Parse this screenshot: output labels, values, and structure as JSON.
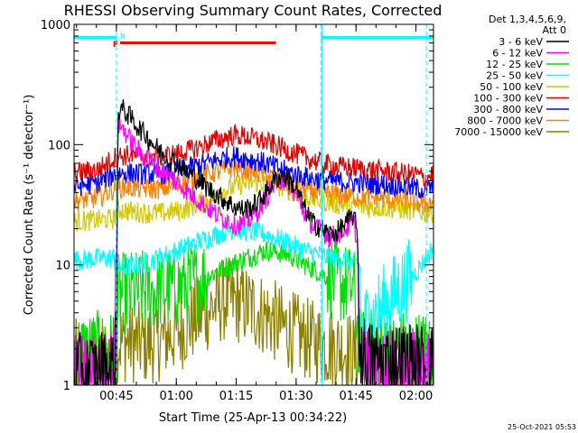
{
  "chart_data": {
    "type": "line",
    "title": "RHESSI Observing Summary Count Rates, Corrected",
    "xlabel": "Start Time (25-Apr-13 00:34:22)",
    "ylabel": "Corrected Count Rate (s⁻¹ detector⁻¹)",
    "y_scale": "log",
    "ylim": [
      1,
      1000
    ],
    "xlim_minutes_after_0034": [
      0,
      90
    ],
    "x_ticks": [
      {
        "label": "00:45",
        "t": 10.6
      },
      {
        "label": "01:00",
        "t": 25.6
      },
      {
        "label": "01:15",
        "t": 40.6
      },
      {
        "label": "01:30",
        "t": 55.6
      },
      {
        "label": "01:45",
        "t": 70.6
      },
      {
        "label": "02:00",
        "t": 85.6
      }
    ],
    "y_ticks": [
      {
        "label": "1",
        "v": 1
      },
      {
        "label": "10",
        "v": 10
      },
      {
        "label": "100",
        "v": 100
      },
      {
        "label": "1000",
        "v": 1000
      }
    ],
    "legend": {
      "position": "right",
      "header": [
        "Det 1,3,4,5,6,9,",
        "Att 0"
      ],
      "entries": [
        {
          "label": "3 - 6 keV",
          "color": "#000000"
        },
        {
          "label": "6 - 12 keV",
          "color": "#ff00ff"
        },
        {
          "label": "12 - 25 keV",
          "color": "#00e000"
        },
        {
          "label": "25 - 50 keV",
          "color": "#00ffff"
        },
        {
          "label": "50 - 100 keV",
          "color": "#d4c800"
        },
        {
          "label": "100 - 300 keV",
          "color": "#e00000"
        },
        {
          "label": "300 - 800 keV",
          "color": "#0000ff"
        },
        {
          "label": "800 - 7000 keV",
          "color": "#ff8000"
        },
        {
          "label": "7000 - 15000 keV",
          "color": "#8b8000"
        }
      ]
    },
    "annotations": {
      "flag_F": {
        "label": "F",
        "t_start": 11.5,
        "t_end": 50.5,
        "color": "#ff0000"
      },
      "flag_N": {
        "label": "N",
        "color": "#00ffff"
      },
      "night_intervals": [
        [
          0,
          10.6
        ],
        [
          61.8,
          90
        ]
      ],
      "attenuator_lines_t": [
        10.6,
        61.8,
        88.2
      ],
      "night_bar_color": "#00ffff"
    },
    "series": [
      {
        "name": "3 - 6 keV",
        "color": "#000000",
        "points": [
          [
            0,
            1.2
          ],
          [
            10,
            1.4
          ],
          [
            10.6,
            2.2
          ],
          [
            11,
            190
          ],
          [
            12,
            200
          ],
          [
            14,
            170
          ],
          [
            16,
            140
          ],
          [
            18,
            120
          ],
          [
            20,
            100
          ],
          [
            22,
            85
          ],
          [
            24,
            75
          ],
          [
            26,
            70
          ],
          [
            28,
            60
          ],
          [
            30,
            55
          ],
          [
            32,
            48
          ],
          [
            34,
            42
          ],
          [
            36,
            38
          ],
          [
            38,
            34
          ],
          [
            40,
            31
          ],
          [
            42,
            29
          ],
          [
            44,
            30
          ],
          [
            46,
            33
          ],
          [
            48,
            40
          ],
          [
            50,
            50
          ],
          [
            52,
            56
          ],
          [
            54,
            50
          ],
          [
            56,
            40
          ],
          [
            58,
            28
          ],
          [
            60,
            22
          ],
          [
            62,
            20
          ],
          [
            64,
            18
          ],
          [
            66,
            19
          ],
          [
            68,
            22
          ],
          [
            70,
            26
          ],
          [
            71,
            18
          ],
          [
            71.5,
            2
          ],
          [
            74,
            1.6
          ],
          [
            90,
            1.5
          ]
        ]
      },
      {
        "name": "6 - 12 keV",
        "color": "#ff00ff",
        "points": [
          [
            0,
            1.2
          ],
          [
            10,
            1.3
          ],
          [
            10.6,
            14
          ],
          [
            11,
            150
          ],
          [
            12,
            140
          ],
          [
            14,
            110
          ],
          [
            16,
            90
          ],
          [
            18,
            78
          ],
          [
            20,
            68
          ],
          [
            22,
            60
          ],
          [
            24,
            54
          ],
          [
            26,
            48
          ],
          [
            28,
            42
          ],
          [
            30,
            37
          ],
          [
            32,
            33
          ],
          [
            34,
            29
          ],
          [
            36,
            26
          ],
          [
            38,
            24
          ],
          [
            40,
            22
          ],
          [
            42,
            22
          ],
          [
            44,
            24
          ],
          [
            46,
            28
          ],
          [
            48,
            36
          ],
          [
            50,
            46
          ],
          [
            52,
            52
          ],
          [
            54,
            46
          ],
          [
            56,
            36
          ],
          [
            58,
            26
          ],
          [
            60,
            21
          ],
          [
            62,
            19
          ],
          [
            64,
            17
          ],
          [
            66,
            18
          ],
          [
            68,
            20
          ],
          [
            70,
            23
          ],
          [
            71,
            15
          ],
          [
            71.5,
            1.4
          ],
          [
            90,
            1.3
          ]
        ]
      },
      {
        "name": "12 - 25 keV",
        "color": "#00e000",
        "points": [
          [
            0,
            1.9
          ],
          [
            10.6,
            1.9
          ],
          [
            11,
            5.6
          ],
          [
            14,
            6
          ],
          [
            18,
            6.1
          ],
          [
            22,
            6.2
          ],
          [
            26,
            6.6
          ],
          [
            30,
            7.2
          ],
          [
            34,
            8.2
          ],
          [
            38,
            9.6
          ],
          [
            42,
            11
          ],
          [
            46,
            12.5
          ],
          [
            48,
            13.2
          ],
          [
            50,
            13
          ],
          [
            54,
            12
          ],
          [
            58,
            10
          ],
          [
            62,
            8.5
          ],
          [
            66,
            7.2
          ],
          [
            70,
            6.5
          ],
          [
            71.5,
            2
          ],
          [
            90,
            1.9
          ]
        ]
      },
      {
        "name": "25 - 50 keV",
        "color": "#00ffff",
        "points": [
          [
            0,
            11
          ],
          [
            10,
            11.5
          ],
          [
            10.6,
            9.5
          ],
          [
            12,
            9.5
          ],
          [
            16,
            10
          ],
          [
            20,
            11
          ],
          [
            24,
            12.5
          ],
          [
            28,
            14
          ],
          [
            32,
            16
          ],
          [
            36,
            18
          ],
          [
            40,
            20
          ],
          [
            44,
            19
          ],
          [
            48,
            18
          ],
          [
            52,
            16
          ],
          [
            56,
            14
          ],
          [
            60,
            12.5
          ],
          [
            64,
            11.5
          ],
          [
            68,
            11
          ],
          [
            71.5,
            10
          ],
          [
            72,
            3
          ],
          [
            86,
            9
          ],
          [
            90,
            14
          ]
        ]
      },
      {
        "name": "50 - 100 keV",
        "color": "#d4c800",
        "points": [
          [
            0,
            23
          ],
          [
            10,
            24
          ],
          [
            10.6,
            29
          ],
          [
            14,
            28
          ],
          [
            18,
            27
          ],
          [
            22,
            27
          ],
          [
            26,
            28
          ],
          [
            30,
            31
          ],
          [
            34,
            36
          ],
          [
            38,
            42
          ],
          [
            42,
            47
          ],
          [
            46,
            49
          ],
          [
            50,
            47
          ],
          [
            54,
            42
          ],
          [
            58,
            37
          ],
          [
            62,
            34
          ],
          [
            66,
            32
          ],
          [
            70,
            31
          ],
          [
            74,
            30
          ],
          [
            78,
            30
          ],
          [
            82,
            29
          ],
          [
            86,
            28
          ],
          [
            88,
            27
          ],
          [
            90,
            28
          ]
        ]
      },
      {
        "name": "100 - 300 keV",
        "color": "#e00000",
        "points": [
          [
            0,
            58
          ],
          [
            6,
            62
          ],
          [
            10.6,
            80
          ],
          [
            14,
            82
          ],
          [
            18,
            80
          ],
          [
            22,
            80
          ],
          [
            26,
            84
          ],
          [
            30,
            92
          ],
          [
            34,
            104
          ],
          [
            38,
            115
          ],
          [
            40,
            120
          ],
          [
            42,
            118
          ],
          [
            46,
            110
          ],
          [
            50,
            100
          ],
          [
            54,
            88
          ],
          [
            58,
            78
          ],
          [
            62,
            70
          ],
          [
            66,
            66
          ],
          [
            70,
            64
          ],
          [
            74,
            62
          ],
          [
            78,
            60
          ],
          [
            82,
            58
          ],
          [
            86,
            56
          ],
          [
            88,
            52
          ],
          [
            90,
            58
          ]
        ]
      },
      {
        "name": "300 - 800 keV",
        "color": "#0000ff",
        "points": [
          [
            0,
            45
          ],
          [
            6,
            48
          ],
          [
            10.6,
            58
          ],
          [
            14,
            58
          ],
          [
            18,
            57
          ],
          [
            22,
            57
          ],
          [
            26,
            60
          ],
          [
            30,
            66
          ],
          [
            34,
            72
          ],
          [
            38,
            78
          ],
          [
            40,
            80
          ],
          [
            44,
            76
          ],
          [
            48,
            70
          ],
          [
            52,
            62
          ],
          [
            56,
            56
          ],
          [
            60,
            52
          ],
          [
            64,
            50
          ],
          [
            68,
            49
          ],
          [
            72,
            48
          ],
          [
            76,
            47
          ],
          [
            80,
            46
          ],
          [
            84,
            44
          ],
          [
            88,
            42
          ],
          [
            90,
            45
          ]
        ]
      },
      {
        "name": "800 - 7000 keV",
        "color": "#ff8000",
        "points": [
          [
            0,
            34
          ],
          [
            6,
            36
          ],
          [
            10.6,
            44
          ],
          [
            14,
            44
          ],
          [
            18,
            43
          ],
          [
            22,
            43
          ],
          [
            26,
            46
          ],
          [
            30,
            52
          ],
          [
            34,
            58
          ],
          [
            38,
            62
          ],
          [
            40,
            64
          ],
          [
            44,
            61
          ],
          [
            48,
            56
          ],
          [
            52,
            50
          ],
          [
            56,
            45
          ],
          [
            60,
            41
          ],
          [
            64,
            39
          ],
          [
            68,
            38
          ],
          [
            72,
            37
          ],
          [
            76,
            36
          ],
          [
            80,
            35
          ],
          [
            84,
            34
          ],
          [
            88,
            32
          ],
          [
            90,
            34
          ]
        ]
      },
      {
        "name": "7000 - 15000 keV",
        "color": "#8b8000",
        "points": [
          [
            0,
            1.6
          ],
          [
            10,
            1.8
          ],
          [
            10.6,
            2.3
          ],
          [
            14,
            2.3
          ],
          [
            18,
            2.2
          ],
          [
            22,
            2.4
          ],
          [
            26,
            2.8
          ],
          [
            30,
            3.5
          ],
          [
            34,
            4.3
          ],
          [
            36,
            4.7
          ],
          [
            38,
            5.2
          ],
          [
            40,
            5
          ],
          [
            44,
            4.5
          ],
          [
            48,
            3.8
          ],
          [
            52,
            3.1
          ],
          [
            56,
            2.6
          ],
          [
            60,
            2.3
          ],
          [
            64,
            2.1
          ],
          [
            68,
            2
          ],
          [
            71.5,
            1.6
          ],
          [
            74,
            1.5
          ],
          [
            90,
            1.5
          ]
        ]
      }
    ]
  },
  "footer": {
    "timestamp": "25-Oct-2021 05:53"
  }
}
